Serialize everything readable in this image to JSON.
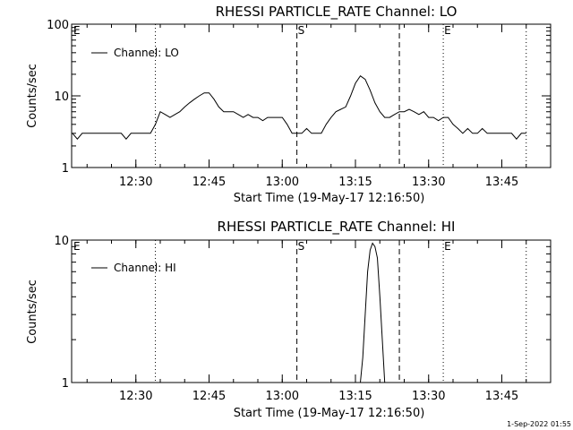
{
  "footer_timestamp": "1-Sep-2022 01:55",
  "chart_data": [
    {
      "type": "line",
      "title": "RHESSI PARTICLE_RATE Channel: LO",
      "xlabel": "Start Time (19-May-17 12:16:50)",
      "ylabel": "Counts/sec",
      "yscale": "log",
      "ylim": [
        1,
        100
      ],
      "xlim": [
        "12:16:50",
        "13:55:00"
      ],
      "x_ticks": [
        "12:30",
        "12:45",
        "13:00",
        "13:15",
        "13:30",
        "13:45"
      ],
      "y_ticks": [
        "1",
        "10",
        "100"
      ],
      "legend": "top-left",
      "series": [
        {
          "name": "Channel: LO",
          "x": [
            "12:17",
            "12:18",
            "12:19",
            "12:20",
            "12:21",
            "12:22",
            "12:23",
            "12:24",
            "12:25",
            "12:26",
            "12:27",
            "12:28",
            "12:29",
            "12:30",
            "12:31",
            "12:32",
            "12:33",
            "12:34",
            "12:35",
            "12:36",
            "12:37",
            "12:38",
            "12:39",
            "12:40",
            "12:41",
            "12:42",
            "12:43",
            "12:44",
            "12:45",
            "12:46",
            "12:47",
            "12:48",
            "12:49",
            "12:50",
            "12:51",
            "12:52",
            "12:53",
            "12:54",
            "12:55",
            "12:56",
            "12:57",
            "12:58",
            "12:59",
            "13:00",
            "13:01",
            "13:02",
            "13:03",
            "13:04",
            "13:05",
            "13:06",
            "13:07",
            "13:08",
            "13:09",
            "13:10",
            "13:11",
            "13:12",
            "13:13",
            "13:14",
            "13:15",
            "13:16",
            "13:17",
            "13:18",
            "13:19",
            "13:20",
            "13:21",
            "13:22",
            "13:23",
            "13:24",
            "13:25",
            "13:26",
            "13:27",
            "13:28",
            "13:29",
            "13:30",
            "13:31",
            "13:32",
            "13:33",
            "13:34",
            "13:35",
            "13:36",
            "13:37",
            "13:38",
            "13:39",
            "13:40",
            "13:41",
            "13:42",
            "13:43",
            "13:44",
            "13:45",
            "13:46",
            "13:47",
            "13:48",
            "13:49",
            "13:50"
          ],
          "values": [
            3,
            2.5,
            3,
            3,
            3,
            3,
            3,
            3,
            3,
            3,
            3,
            2.5,
            3,
            3,
            3,
            3,
            3,
            4,
            6,
            5.5,
            5,
            5.5,
            6,
            7,
            8,
            9,
            10,
            11,
            11,
            9,
            7,
            6,
            6,
            6,
            5.5,
            5,
            5.5,
            5,
            5,
            4.5,
            5,
            5,
            5,
            5,
            4,
            3,
            3,
            3,
            3.5,
            3,
            3,
            3,
            4,
            5,
            6,
            6.5,
            7,
            10,
            15,
            19,
            17,
            12,
            8,
            6,
            5,
            5,
            5.5,
            6,
            6,
            6.5,
            6,
            5.5,
            6,
            5,
            5,
            4.5,
            5,
            5,
            4,
            3.5,
            3,
            3.5,
            3,
            3,
            3.5,
            3,
            3,
            3,
            3,
            3,
            3,
            2.5,
            3,
            3
          ]
        }
      ],
      "markers": [
        {
          "label": "E",
          "time": "12:16:50",
          "style": "dotted"
        },
        {
          "label": "",
          "time": "12:34:00",
          "style": "dotted"
        },
        {
          "label": "S",
          "time": "13:03:00",
          "style": "dashed"
        },
        {
          "label": "",
          "time": "13:24:00",
          "style": "dashed"
        },
        {
          "label": "E",
          "time": "13:33:00",
          "style": "dotted"
        },
        {
          "label": "",
          "time": "13:50:00",
          "style": "dotted"
        }
      ]
    },
    {
      "type": "line",
      "title": "RHESSI PARTICLE_RATE Channel: HI",
      "xlabel": "Start Time (19-May-17 12:16:50)",
      "ylabel": "Counts/sec",
      "yscale": "log",
      "ylim": [
        1,
        10
      ],
      "xlim": [
        "12:16:50",
        "13:55:00"
      ],
      "x_ticks": [
        "12:30",
        "12:45",
        "13:00",
        "13:15",
        "13:30",
        "13:45"
      ],
      "y_ticks": [
        "1",
        "10"
      ],
      "legend": "top-left",
      "series": [
        {
          "name": "Channel: HI",
          "x": [
            "13:16:00",
            "13:16:30",
            "13:17:00",
            "13:17:30",
            "13:18:00",
            "13:18:30",
            "13:19:00",
            "13:19:30",
            "13:20:00",
            "13:20:30",
            "13:21:00"
          ],
          "values": [
            1,
            1.5,
            3,
            6,
            8.5,
            9.5,
            9,
            7.5,
            4,
            2,
            1
          ]
        }
      ],
      "markers": [
        {
          "label": "E",
          "time": "12:16:50",
          "style": "dotted"
        },
        {
          "label": "",
          "time": "12:34:00",
          "style": "dotted"
        },
        {
          "label": "S",
          "time": "13:03:00",
          "style": "dashed"
        },
        {
          "label": "",
          "time": "13:24:00",
          "style": "dashed"
        },
        {
          "label": "E",
          "time": "13:33:00",
          "style": "dotted"
        },
        {
          "label": "",
          "time": "13:50:00",
          "style": "dotted"
        }
      ]
    }
  ]
}
